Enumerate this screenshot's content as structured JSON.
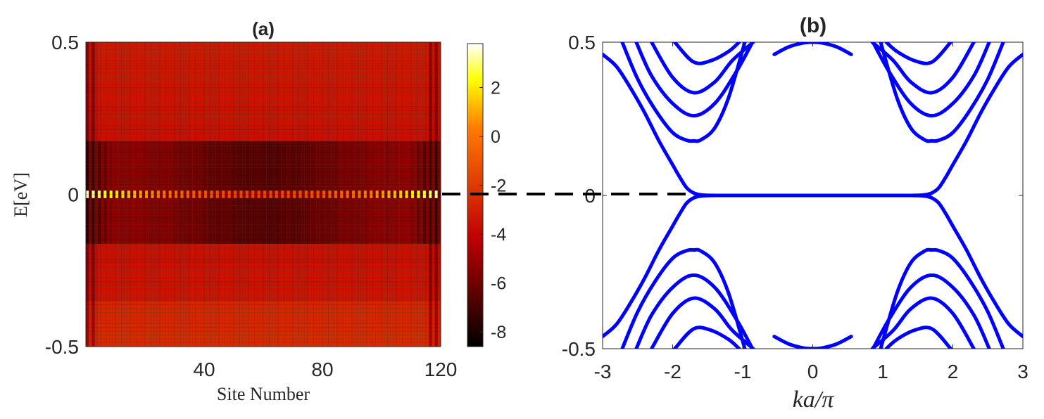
{
  "chart_data": [
    {
      "panel": "a",
      "type": "heatmap",
      "title": "(a)",
      "xlabel": "Site Number",
      "ylabel": "E[eV]",
      "xlim": [
        0,
        120
      ],
      "ylim": [
        -0.5,
        0.5
      ],
      "n_sites": 120,
      "n_energies": 80,
      "xticks": [
        40,
        80,
        120
      ],
      "xtick_labels": [
        "40",
        "80",
        "120"
      ],
      "yticks": [
        0.5,
        0,
        -0.5
      ],
      "ytick_labels": [
        "0.5",
        "0",
        "-0.5"
      ],
      "colorbar": {
        "range": [
          -8.6,
          3.8
        ],
        "ticks": [
          2,
          0,
          -2,
          -4,
          -6,
          -8
        ],
        "tick_labels": [
          "2",
          "0",
          "-2",
          "-4",
          "-6",
          "-8"
        ],
        "colormap": "hot"
      },
      "features": {
        "zero_mode_energy": 0,
        "zero_mode_peak_value": 3.5,
        "gap_band_energy_range": [
          -0.16,
          0.18
        ],
        "gap_band_value": -6,
        "background_value": -3.5,
        "band_edge_value": -2.8
      }
    },
    {
      "panel": "b",
      "type": "line",
      "title": "(b)",
      "xlabel": "ka/π",
      "ylabel": "",
      "xlim": [
        -3,
        3
      ],
      "ylim": [
        -0.5,
        0.5
      ],
      "xticks": [
        -3,
        -2,
        -1,
        0,
        1,
        2,
        3
      ],
      "xtick_labels": [
        "-3",
        "-2",
        "-1",
        "0",
        "1",
        "2",
        "3"
      ],
      "yticks": [
        0.5,
        0,
        -0.5
      ],
      "ytick_labels": [
        "0.5",
        "0",
        "-0.5"
      ],
      "line_color": "#0000ff",
      "series": [
        {
          "name": "edge band (E>0)",
          "x": [
            -3.0,
            -2.8,
            -2.6,
            -2.4,
            -2.2,
            -2.0,
            -1.9,
            -1.8,
            -1.7,
            -1.6,
            -1.4,
            -1.0,
            0.0,
            1.0,
            1.4,
            1.6,
            1.7,
            1.8,
            1.9,
            2.0,
            2.2,
            2.4,
            2.6,
            2.8,
            3.0
          ],
          "y": [
            0.46,
            0.42,
            0.35,
            0.27,
            0.18,
            0.1,
            0.06,
            0.025,
            0.008,
            0.002,
            0.0,
            0.0,
            0.0,
            0.0,
            0.0,
            0.002,
            0.008,
            0.025,
            0.06,
            0.1,
            0.18,
            0.27,
            0.35,
            0.42,
            0.46
          ]
        },
        {
          "name": "edge band (E<0)",
          "x": [
            -3.0,
            -2.8,
            -2.6,
            -2.4,
            -2.2,
            -2.0,
            -1.9,
            -1.8,
            -1.7,
            -1.6,
            -1.4,
            -1.0,
            0.0,
            1.0,
            1.4,
            1.6,
            1.7,
            1.8,
            1.9,
            2.0,
            2.2,
            2.4,
            2.6,
            2.8,
            3.0
          ],
          "y": [
            -0.46,
            -0.42,
            -0.35,
            -0.27,
            -0.18,
            -0.1,
            -0.06,
            -0.025,
            -0.008,
            -0.002,
            0.0,
            0.0,
            0.0,
            0.0,
            0.0,
            -0.002,
            -0.008,
            -0.025,
            -0.06,
            -0.1,
            -0.18,
            -0.27,
            -0.35,
            -0.42,
            -0.46
          ]
        },
        {
          "name": "bulk band +1",
          "x": [
            -2.72,
            -2.5,
            -2.25,
            -2.0,
            -1.8,
            -1.7,
            -1.6,
            -1.4,
            -1.2,
            -0.97
          ],
          "y": [
            0.5,
            0.38,
            0.28,
            0.205,
            0.18,
            0.178,
            0.181,
            0.22,
            0.32,
            0.5
          ]
        },
        {
          "name": "bulk band +2",
          "x": [
            -2.52,
            -2.3,
            -2.0,
            -1.7,
            -1.4,
            -1.1,
            -0.86
          ],
          "y": [
            0.5,
            0.39,
            0.3,
            0.26,
            0.3,
            0.4,
            0.5
          ]
        },
        {
          "name": "bulk band +3",
          "x": [
            -2.3,
            -2.0,
            -1.7,
            -1.4,
            -1.15,
            -0.85
          ],
          "y": [
            0.5,
            0.385,
            0.335,
            0.37,
            0.44,
            0.5
          ]
        },
        {
          "name": "bulk band +4",
          "x": [
            -1.97,
            -1.7,
            -1.45,
            -1.2,
            -1.05
          ],
          "y": [
            0.5,
            0.435,
            0.44,
            0.47,
            0.5
          ]
        },
        {
          "name": "bulk band +1 (k>0)",
          "x": [
            0.97,
            1.2,
            1.4,
            1.6,
            1.7,
            1.8,
            2.0,
            2.25,
            2.5,
            2.72
          ],
          "y": [
            0.5,
            0.32,
            0.22,
            0.181,
            0.178,
            0.18,
            0.205,
            0.28,
            0.38,
            0.5
          ]
        },
        {
          "name": "bulk band +2 (k>0)",
          "x": [
            0.86,
            1.1,
            1.4,
            1.7,
            2.0,
            2.3,
            2.52
          ],
          "y": [
            0.5,
            0.4,
            0.3,
            0.26,
            0.3,
            0.39,
            0.5
          ]
        },
        {
          "name": "bulk band +3 (k>0)",
          "x": [
            0.85,
            1.15,
            1.4,
            1.7,
            2.0,
            2.3
          ],
          "y": [
            0.5,
            0.44,
            0.37,
            0.335,
            0.385,
            0.5
          ]
        },
        {
          "name": "bulk band +4 (k>0)",
          "x": [
            1.05,
            1.2,
            1.45,
            1.7,
            1.97
          ],
          "y": [
            0.5,
            0.47,
            0.44,
            0.435,
            0.5
          ]
        },
        {
          "name": "bulk band -1",
          "x": [
            -2.72,
            -2.5,
            -2.25,
            -2.0,
            -1.8,
            -1.7,
            -1.6,
            -1.4,
            -1.2,
            -0.97
          ],
          "y": [
            -0.5,
            -0.38,
            -0.28,
            -0.205,
            -0.18,
            -0.178,
            -0.181,
            -0.22,
            -0.32,
            -0.5
          ]
        },
        {
          "name": "bulk band -2",
          "x": [
            -2.52,
            -2.3,
            -2.0,
            -1.7,
            -1.4,
            -1.1,
            -0.86
          ],
          "y": [
            -0.5,
            -0.39,
            -0.3,
            -0.26,
            -0.3,
            -0.4,
            -0.5
          ]
        },
        {
          "name": "bulk band -3",
          "x": [
            -2.3,
            -2.0,
            -1.7,
            -1.4,
            -1.15,
            -0.85
          ],
          "y": [
            -0.5,
            -0.385,
            -0.335,
            -0.37,
            -0.44,
            -0.5
          ]
        },
        {
          "name": "bulk band -4",
          "x": [
            -1.97,
            -1.7,
            -1.45,
            -1.2,
            -1.05
          ],
          "y": [
            -0.5,
            -0.435,
            -0.44,
            -0.47,
            -0.5
          ]
        },
        {
          "name": "bulk band -1 (k>0)",
          "x": [
            0.97,
            1.2,
            1.4,
            1.6,
            1.7,
            1.8,
            2.0,
            2.25,
            2.5,
            2.72
          ],
          "y": [
            -0.5,
            -0.32,
            -0.22,
            -0.181,
            -0.178,
            -0.18,
            -0.205,
            -0.28,
            -0.38,
            -0.5
          ]
        },
        {
          "name": "bulk band -2 (k>0)",
          "x": [
            0.86,
            1.1,
            1.4,
            1.7,
            2.0,
            2.3,
            2.52
          ],
          "y": [
            -0.5,
            -0.4,
            -0.3,
            -0.26,
            -0.3,
            -0.39,
            -0.5
          ]
        },
        {
          "name": "bulk band -3 (k>0)",
          "x": [
            0.85,
            1.15,
            1.4,
            1.7,
            2.0,
            2.3
          ],
          "y": [
            -0.5,
            -0.44,
            -0.37,
            -0.335,
            -0.385,
            -0.5
          ]
        },
        {
          "name": "bulk band -4 (k>0)",
          "x": [
            1.05,
            1.2,
            1.45,
            1.7,
            1.97
          ],
          "y": [
            -0.5,
            -0.47,
            -0.44,
            -0.435,
            -0.5
          ]
        },
        {
          "name": "top valence arc",
          "x": [
            -0.55,
            -0.35,
            -0.15,
            0.0,
            0.15,
            0.35,
            0.55
          ],
          "y": [
            0.46,
            0.484,
            0.497,
            0.5,
            0.497,
            0.484,
            0.46
          ]
        },
        {
          "name": "bottom conduction arc",
          "x": [
            -0.55,
            -0.35,
            -0.15,
            0.0,
            0.15,
            0.35,
            0.55
          ],
          "y": [
            -0.46,
            -0.484,
            -0.497,
            -0.5,
            -0.497,
            -0.484,
            -0.46
          ]
        }
      ]
    }
  ],
  "annotation": {
    "type": "dashed-line",
    "energy": 0,
    "description": "connects E=0 zero mode in (a) to flat band in (b)"
  }
}
